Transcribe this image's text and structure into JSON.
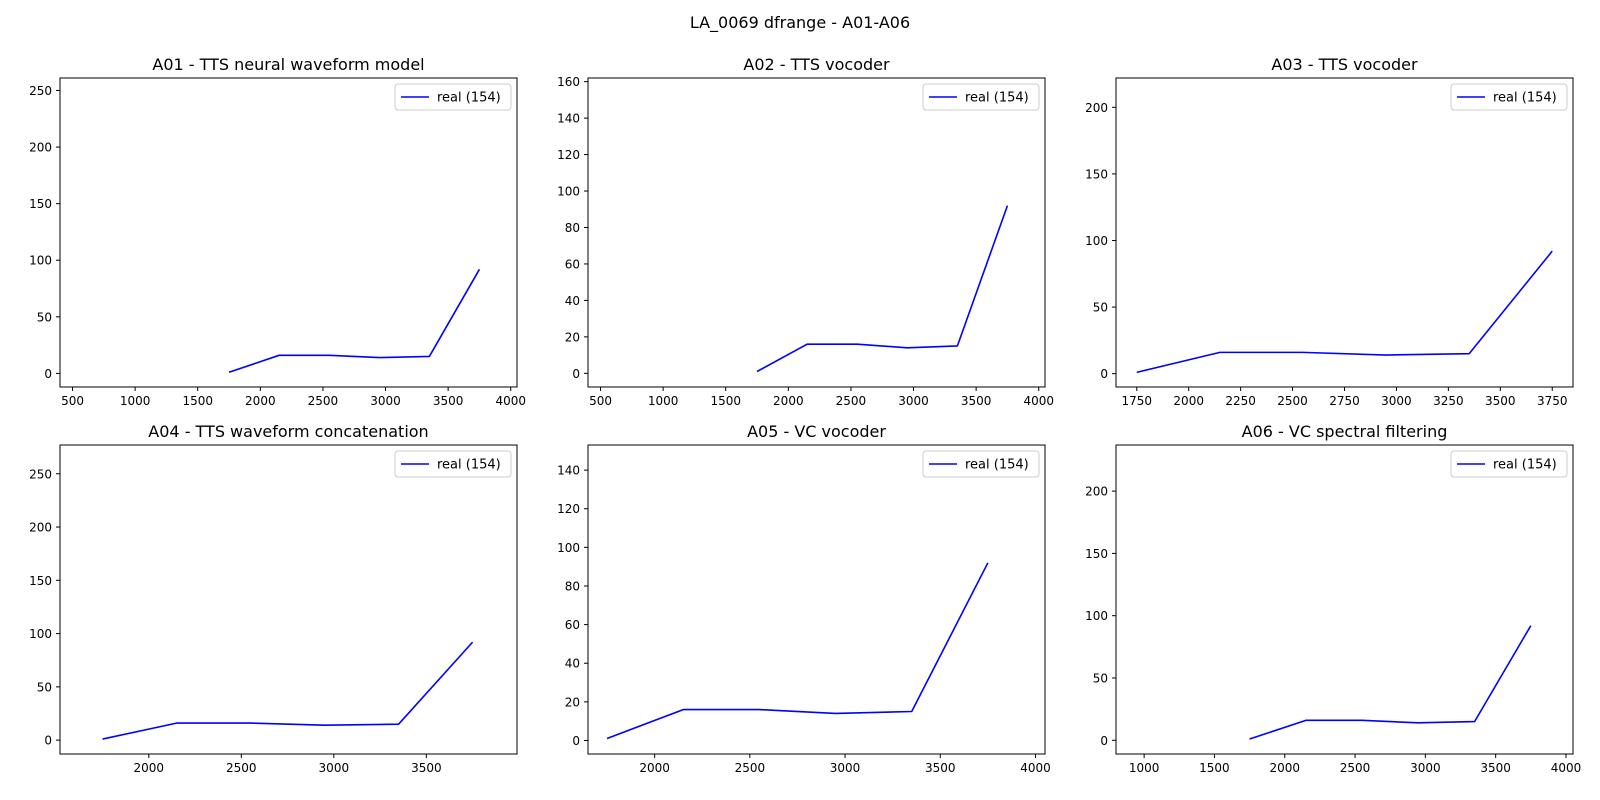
{
  "suptitle": "LA_0069 dfrange - A01-A06",
  "chart_data": [
    {
      "type": "line",
      "title": "A01 - TTS neural waveform model",
      "xlim": [
        400,
        4050
      ],
      "ylim": [
        -12,
        261
      ],
      "xticks": [
        500,
        1000,
        1500,
        2000,
        2500,
        3000,
        3500,
        4000
      ],
      "yticks": [
        0,
        50,
        100,
        150,
        200,
        250
      ],
      "series": [
        {
          "name": "real (154)",
          "color": "#0000ff",
          "x": [
            1750,
            2150,
            2550,
            2950,
            3350,
            3750
          ],
          "y": [
            1,
            16,
            16,
            14,
            15,
            92
          ]
        }
      ],
      "legend": "upper right"
    },
    {
      "type": "line",
      "title": "A02 - TTS vocoder",
      "xlim": [
        400,
        4050
      ],
      "ylim": [
        -7.5,
        162
      ],
      "xticks": [
        500,
        1000,
        1500,
        2000,
        2500,
        3000,
        3500,
        4000
      ],
      "yticks": [
        0,
        20,
        40,
        60,
        80,
        100,
        120,
        140,
        160
      ],
      "series": [
        {
          "name": "real (154)",
          "color": "#0000ff",
          "x": [
            1750,
            2150,
            2550,
            2950,
            3350,
            3750
          ],
          "y": [
            1,
            16,
            16,
            14,
            15,
            92
          ]
        }
      ],
      "legend": "upper right"
    },
    {
      "type": "line",
      "title": "A03 - TTS vocoder",
      "xlim": [
        1650,
        3850
      ],
      "ylim": [
        -10,
        222
      ],
      "xticks": [
        1750,
        2000,
        2250,
        2500,
        2750,
        3000,
        3250,
        3500,
        3750
      ],
      "yticks": [
        0,
        50,
        100,
        150,
        200
      ],
      "series": [
        {
          "name": "real (154)",
          "color": "#0000ff",
          "x": [
            1750,
            2150,
            2550,
            2950,
            3350,
            3750
          ],
          "y": [
            1,
            16,
            16,
            14,
            15,
            92
          ]
        }
      ],
      "legend": "upper right"
    },
    {
      "type": "line",
      "title": "A04 - TTS waveform concatenation",
      "xlim": [
        1520,
        3990
      ],
      "ylim": [
        -13,
        277
      ],
      "xticks": [
        2000,
        2500,
        3000,
        3500
      ],
      "yticks": [
        0,
        50,
        100,
        150,
        200,
        250
      ],
      "series": [
        {
          "name": "real (154)",
          "color": "#0000ff",
          "x": [
            1750,
            2150,
            2550,
            2950,
            3350,
            3750
          ],
          "y": [
            1,
            16,
            16,
            14,
            15,
            92
          ]
        }
      ],
      "legend": "upper right"
    },
    {
      "type": "line",
      "title": "A05 - VC vocoder",
      "xlim": [
        1650,
        4050
      ],
      "ylim": [
        -7,
        153
      ],
      "xticks": [
        2000,
        2500,
        3000,
        3500,
        4000
      ],
      "yticks": [
        0,
        20,
        40,
        60,
        80,
        100,
        120,
        140
      ],
      "series": [
        {
          "name": "real (154)",
          "color": "#0000ff",
          "x": [
            1750,
            2150,
            2550,
            2950,
            3350,
            3750
          ],
          "y": [
            1,
            16,
            16,
            14,
            15,
            92
          ]
        }
      ],
      "legend": "upper right"
    },
    {
      "type": "line",
      "title": "A06 - VC spectral filtering",
      "xlim": [
        800,
        4050
      ],
      "ylim": [
        -11,
        237
      ],
      "xticks": [
        1000,
        1500,
        2000,
        2500,
        3000,
        3500,
        4000
      ],
      "yticks": [
        0,
        50,
        100,
        150,
        200
      ],
      "series": [
        {
          "name": "real (154)",
          "color": "#0000ff",
          "x": [
            1750,
            2150,
            2550,
            2950,
            3350,
            3750
          ],
          "y": [
            1,
            16,
            16,
            14,
            15,
            92
          ]
        }
      ],
      "legend": "upper right"
    }
  ]
}
